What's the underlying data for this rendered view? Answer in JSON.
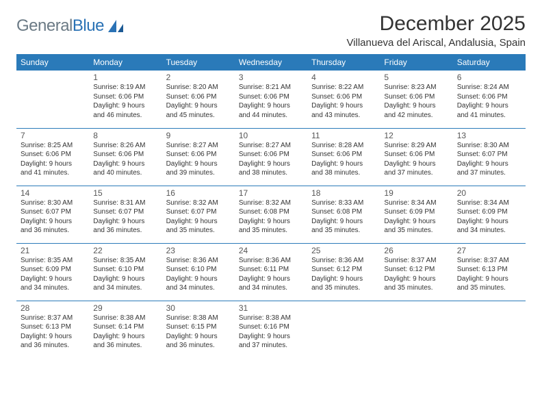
{
  "logo": {
    "word1": "General",
    "word2": "Blue"
  },
  "title": "December 2025",
  "location": "Villanueva del Ariscal, Andalusia, Spain",
  "colors": {
    "header_bg": "#2a7ab9",
    "header_text": "#ffffff",
    "rule": "#2a7ab9",
    "logo_gray": "#6b7a85",
    "logo_blue": "#2a72b5",
    "text": "#333333",
    "background": "#ffffff"
  },
  "typography": {
    "title_fontsize_pt": 22,
    "location_fontsize_pt": 11,
    "header_fontsize_pt": 9,
    "daynum_fontsize_pt": 9,
    "body_fontsize_pt": 7.5
  },
  "weekdays": [
    "Sunday",
    "Monday",
    "Tuesday",
    "Wednesday",
    "Thursday",
    "Friday",
    "Saturday"
  ],
  "weeks": [
    [
      null,
      {
        "n": "1",
        "sr": "8:19 AM",
        "ss": "6:06 PM",
        "dl": "9 hours and 46 minutes."
      },
      {
        "n": "2",
        "sr": "8:20 AM",
        "ss": "6:06 PM",
        "dl": "9 hours and 45 minutes."
      },
      {
        "n": "3",
        "sr": "8:21 AM",
        "ss": "6:06 PM",
        "dl": "9 hours and 44 minutes."
      },
      {
        "n": "4",
        "sr": "8:22 AM",
        "ss": "6:06 PM",
        "dl": "9 hours and 43 minutes."
      },
      {
        "n": "5",
        "sr": "8:23 AM",
        "ss": "6:06 PM",
        "dl": "9 hours and 42 minutes."
      },
      {
        "n": "6",
        "sr": "8:24 AM",
        "ss": "6:06 PM",
        "dl": "9 hours and 41 minutes."
      }
    ],
    [
      {
        "n": "7",
        "sr": "8:25 AM",
        "ss": "6:06 PM",
        "dl": "9 hours and 41 minutes."
      },
      {
        "n": "8",
        "sr": "8:26 AM",
        "ss": "6:06 PM",
        "dl": "9 hours and 40 minutes."
      },
      {
        "n": "9",
        "sr": "8:27 AM",
        "ss": "6:06 PM",
        "dl": "9 hours and 39 minutes."
      },
      {
        "n": "10",
        "sr": "8:27 AM",
        "ss": "6:06 PM",
        "dl": "9 hours and 38 minutes."
      },
      {
        "n": "11",
        "sr": "8:28 AM",
        "ss": "6:06 PM",
        "dl": "9 hours and 38 minutes."
      },
      {
        "n": "12",
        "sr": "8:29 AM",
        "ss": "6:06 PM",
        "dl": "9 hours and 37 minutes."
      },
      {
        "n": "13",
        "sr": "8:30 AM",
        "ss": "6:07 PM",
        "dl": "9 hours and 37 minutes."
      }
    ],
    [
      {
        "n": "14",
        "sr": "8:30 AM",
        "ss": "6:07 PM",
        "dl": "9 hours and 36 minutes."
      },
      {
        "n": "15",
        "sr": "8:31 AM",
        "ss": "6:07 PM",
        "dl": "9 hours and 36 minutes."
      },
      {
        "n": "16",
        "sr": "8:32 AM",
        "ss": "6:07 PM",
        "dl": "9 hours and 35 minutes."
      },
      {
        "n": "17",
        "sr": "8:32 AM",
        "ss": "6:08 PM",
        "dl": "9 hours and 35 minutes."
      },
      {
        "n": "18",
        "sr": "8:33 AM",
        "ss": "6:08 PM",
        "dl": "9 hours and 35 minutes."
      },
      {
        "n": "19",
        "sr": "8:34 AM",
        "ss": "6:09 PM",
        "dl": "9 hours and 35 minutes."
      },
      {
        "n": "20",
        "sr": "8:34 AM",
        "ss": "6:09 PM",
        "dl": "9 hours and 34 minutes."
      }
    ],
    [
      {
        "n": "21",
        "sr": "8:35 AM",
        "ss": "6:09 PM",
        "dl": "9 hours and 34 minutes."
      },
      {
        "n": "22",
        "sr": "8:35 AM",
        "ss": "6:10 PM",
        "dl": "9 hours and 34 minutes."
      },
      {
        "n": "23",
        "sr": "8:36 AM",
        "ss": "6:10 PM",
        "dl": "9 hours and 34 minutes."
      },
      {
        "n": "24",
        "sr": "8:36 AM",
        "ss": "6:11 PM",
        "dl": "9 hours and 34 minutes."
      },
      {
        "n": "25",
        "sr": "8:36 AM",
        "ss": "6:12 PM",
        "dl": "9 hours and 35 minutes."
      },
      {
        "n": "26",
        "sr": "8:37 AM",
        "ss": "6:12 PM",
        "dl": "9 hours and 35 minutes."
      },
      {
        "n": "27",
        "sr": "8:37 AM",
        "ss": "6:13 PM",
        "dl": "9 hours and 35 minutes."
      }
    ],
    [
      {
        "n": "28",
        "sr": "8:37 AM",
        "ss": "6:13 PM",
        "dl": "9 hours and 36 minutes."
      },
      {
        "n": "29",
        "sr": "8:38 AM",
        "ss": "6:14 PM",
        "dl": "9 hours and 36 minutes."
      },
      {
        "n": "30",
        "sr": "8:38 AM",
        "ss": "6:15 PM",
        "dl": "9 hours and 36 minutes."
      },
      {
        "n": "31",
        "sr": "8:38 AM",
        "ss": "6:16 PM",
        "dl": "9 hours and 37 minutes."
      },
      null,
      null,
      null
    ]
  ],
  "labels": {
    "sunrise": "Sunrise:",
    "sunset": "Sunset:",
    "daylight": "Daylight:"
  }
}
